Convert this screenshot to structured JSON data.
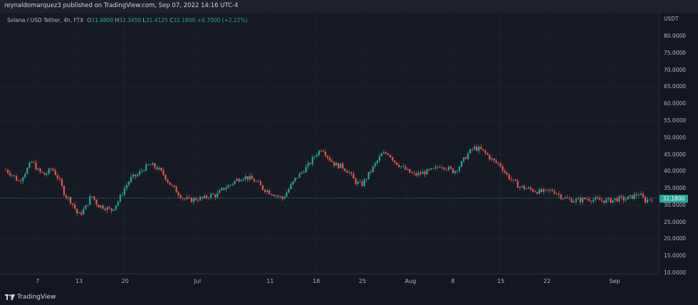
{
  "header": {
    "publisher_line": "reynaldomarquez3 published on TradingView.com, Sep 07, 2022 14:16 UTC-4"
  },
  "legend": {
    "symbol": "Solana / USD Tether, 4h, FTX",
    "open_label": "O",
    "open": "31.4800",
    "high_label": "H",
    "high": "32.3450",
    "low_label": "L",
    "low": "31.4125",
    "close_label": "C",
    "close": "32.1800",
    "change": "+0.7000 (+2.22%)"
  },
  "price_axis": {
    "currency": "USDT",
    "last_price": "32.1800"
  },
  "footer": {
    "brand": "TradingView"
  },
  "colors": {
    "up": "#26a69a",
    "down": "#ef5350",
    "background": "#131722",
    "grid": "#1f2330"
  },
  "chart_data": {
    "type": "candlestick",
    "y_ticks": [
      "80.0000",
      "75.0000",
      "70.0000",
      "65.0000",
      "60.0000",
      "55.0000",
      "50.0000",
      "45.0000",
      "40.0000",
      "35.0000",
      "30.0000",
      "25.0000",
      "20.0000",
      "15.0000",
      "10.0000"
    ],
    "y_tick_values": [
      80,
      75,
      70,
      65,
      60,
      55,
      50,
      45,
      40,
      35,
      30,
      25,
      20,
      15,
      10
    ],
    "ylim": [
      10,
      80
    ],
    "x_ticks": [
      "7",
      "13",
      "20",
      "Jul",
      "11",
      "18",
      "25",
      "Aug",
      "8",
      "15",
      "22",
      "Sep"
    ],
    "x_tick_values": [
      6,
      12,
      19,
      30,
      41,
      48,
      55,
      62,
      69,
      76,
      83,
      93
    ],
    "xlim": [
      1,
      99
    ],
    "close_path": [
      [
        1,
        40.5
      ],
      [
        2,
        39
      ],
      [
        3,
        37
      ],
      [
        4,
        40
      ],
      [
        5,
        43
      ],
      [
        6,
        40
      ],
      [
        7,
        39
      ],
      [
        8,
        41
      ],
      [
        9,
        38
      ],
      [
        10,
        33
      ],
      [
        11,
        31
      ],
      [
        12,
        27
      ],
      [
        13,
        29
      ],
      [
        14,
        33
      ],
      [
        15,
        30
      ],
      [
        16,
        29.5
      ],
      [
        17,
        28.5
      ],
      [
        18,
        31
      ],
      [
        19,
        35
      ],
      [
        20,
        38
      ],
      [
        21,
        39
      ],
      [
        22,
        41
      ],
      [
        23,
        42
      ],
      [
        24,
        41
      ],
      [
        25,
        39
      ],
      [
        26,
        36
      ],
      [
        27,
        34
      ],
      [
        28,
        32
      ],
      [
        29,
        31.5
      ],
      [
        30,
        32
      ],
      [
        31,
        32
      ],
      [
        32,
        33
      ],
      [
        33,
        33
      ],
      [
        34,
        35
      ],
      [
        35,
        36
      ],
      [
        36,
        37.5
      ],
      [
        37,
        38.5
      ],
      [
        38,
        38
      ],
      [
        39,
        37
      ],
      [
        40,
        35
      ],
      [
        41,
        34
      ],
      [
        42,
        33
      ],
      [
        43,
        32
      ],
      [
        44,
        35
      ],
      [
        45,
        38
      ],
      [
        46,
        40
      ],
      [
        47,
        42
      ],
      [
        48,
        45
      ],
      [
        49,
        47
      ],
      [
        50,
        44
      ],
      [
        51,
        42
      ],
      [
        52,
        41.5
      ],
      [
        53,
        40
      ],
      [
        54,
        37
      ],
      [
        55,
        36
      ],
      [
        56,
        39
      ],
      [
        57,
        42
      ],
      [
        58,
        45
      ],
      [
        59,
        45.5
      ],
      [
        60,
        43
      ],
      [
        61,
        41.5
      ],
      [
        62,
        40
      ],
      [
        63,
        39
      ],
      [
        64,
        39.5
      ],
      [
        65,
        40
      ],
      [
        66,
        40.5
      ],
      [
        67,
        42
      ],
      [
        68,
        41
      ],
      [
        69,
        40
      ],
      [
        70,
        42
      ],
      [
        71,
        45
      ],
      [
        72,
        47
      ],
      [
        73,
        46.5
      ],
      [
        74,
        45
      ],
      [
        75,
        43
      ],
      [
        76,
        42
      ],
      [
        77,
        39
      ],
      [
        78,
        37
      ],
      [
        79,
        35.5
      ],
      [
        80,
        35
      ],
      [
        81,
        34.5
      ],
      [
        82,
        34
      ],
      [
        83,
        34
      ],
      [
        84,
        34.5
      ],
      [
        85,
        33
      ],
      [
        86,
        32
      ],
      [
        87,
        31.5
      ],
      [
        88,
        31.5
      ],
      [
        89,
        32
      ],
      [
        90,
        31.8
      ],
      [
        91,
        31.5
      ],
      [
        92,
        31.4
      ],
      [
        93,
        31.5
      ],
      [
        94,
        32
      ],
      [
        95,
        31.8
      ],
      [
        96,
        32.5
      ],
      [
        97,
        33.5
      ],
      [
        98,
        31.4
      ],
      [
        99,
        32.18
      ]
    ]
  }
}
